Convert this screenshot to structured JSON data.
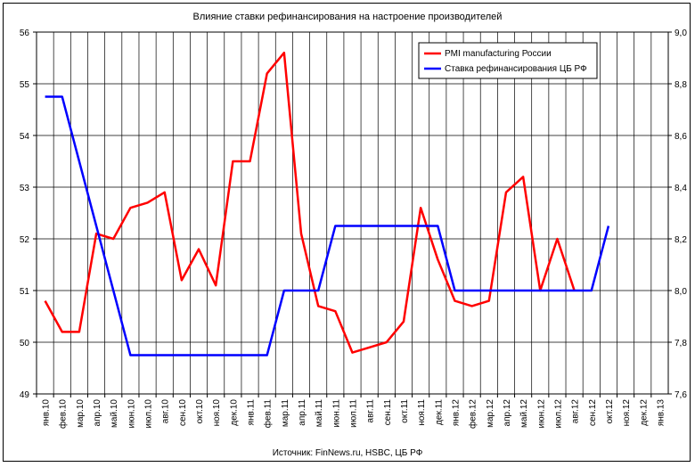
{
  "chart_data": {
    "type": "line",
    "title": "Влияние ставки рефинансирования на настроение производителей",
    "source": "Источник: FinNews.ru, HSBC, ЦБ РФ",
    "categories": [
      "янв.10",
      "фев.10",
      "мар.10",
      "апр.10",
      "май.10",
      "июн.10",
      "июл.10",
      "авг.10",
      "сен.10",
      "окт.10",
      "ноя.10",
      "дек.10",
      "янв.11",
      "фев.11",
      "мар.11",
      "апр.11",
      "май.11",
      "июн.11",
      "июл.11",
      "авг.11",
      "сен.11",
      "окт.11",
      "ноя.11",
      "дек.11",
      "янв.12",
      "фев.12",
      "мар.12",
      "апр.12",
      "май.12",
      "июн.12",
      "июл.12",
      "авг.12",
      "сен.12",
      "окт.12",
      "ноя.12",
      "дек.12",
      "янв.13"
    ],
    "y_left": {
      "min": 49,
      "max": 56,
      "ticks": [
        "49",
        "50",
        "51",
        "52",
        "53",
        "54",
        "55",
        "56"
      ]
    },
    "y_right": {
      "min": 7.6,
      "max": 9.0,
      "ticks": [
        "7,6",
        "7,8",
        "8,0",
        "8,2",
        "8,4",
        "8,6",
        "8,8",
        "9,0"
      ]
    },
    "grid": true,
    "legend_position": "top-right",
    "series": [
      {
        "name": "PMI manufacturing России",
        "color": "#ff0000",
        "axis": "left",
        "points": [
          [
            0,
            50.8
          ],
          [
            1,
            50.2
          ],
          [
            2,
            50.2
          ],
          [
            3,
            52.1
          ],
          [
            4,
            52.0
          ],
          [
            5,
            52.6
          ],
          [
            6,
            52.7
          ],
          [
            7,
            52.9
          ],
          [
            8,
            51.2
          ],
          [
            9,
            51.8
          ],
          [
            10,
            51.1
          ],
          [
            11,
            53.5
          ],
          [
            12,
            53.5
          ],
          [
            13,
            55.2
          ],
          [
            14,
            55.6
          ],
          [
            15,
            52.1
          ],
          [
            16,
            50.7
          ],
          [
            17,
            50.6
          ],
          [
            18,
            49.8
          ],
          [
            19,
            49.9
          ],
          [
            20,
            50.0
          ],
          [
            21,
            50.4
          ],
          [
            22,
            52.6
          ],
          [
            23,
            51.6
          ],
          [
            24,
            50.8
          ],
          [
            25,
            50.7
          ],
          [
            26,
            50.8
          ],
          [
            27,
            52.9
          ],
          [
            28,
            53.2
          ],
          [
            29,
            51.0
          ],
          [
            30,
            52.0
          ],
          [
            31,
            51.0
          ]
        ]
      },
      {
        "name": "Ставка рефинансирования ЦБ РФ",
        "color": "#0000ff",
        "axis": "right",
        "points": [
          [
            0,
            8.75
          ],
          [
            1,
            8.75
          ],
          [
            2,
            8.5
          ],
          [
            3,
            8.25
          ],
          [
            4,
            8.0
          ],
          [
            5,
            7.75
          ],
          [
            6,
            7.75
          ],
          [
            7,
            7.75
          ],
          [
            8,
            7.75
          ],
          [
            9,
            7.75
          ],
          [
            10,
            7.75
          ],
          [
            11,
            7.75
          ],
          [
            12,
            7.75
          ],
          [
            13,
            7.75
          ],
          [
            14,
            8.0
          ],
          [
            15,
            8.0
          ],
          [
            16,
            8.0
          ],
          [
            17,
            8.25
          ],
          [
            18,
            8.25
          ],
          [
            19,
            8.25
          ],
          [
            20,
            8.25
          ],
          [
            21,
            8.25
          ],
          [
            22,
            8.25
          ],
          [
            23,
            8.25
          ],
          [
            24,
            8.0
          ],
          [
            25,
            8.0
          ],
          [
            26,
            8.0
          ],
          [
            27,
            8.0
          ],
          [
            28,
            8.0
          ],
          [
            29,
            8.0
          ],
          [
            30,
            8.0
          ],
          [
            31,
            8.0
          ],
          [
            32,
            8.0
          ],
          [
            33,
            8.25
          ]
        ]
      }
    ]
  }
}
